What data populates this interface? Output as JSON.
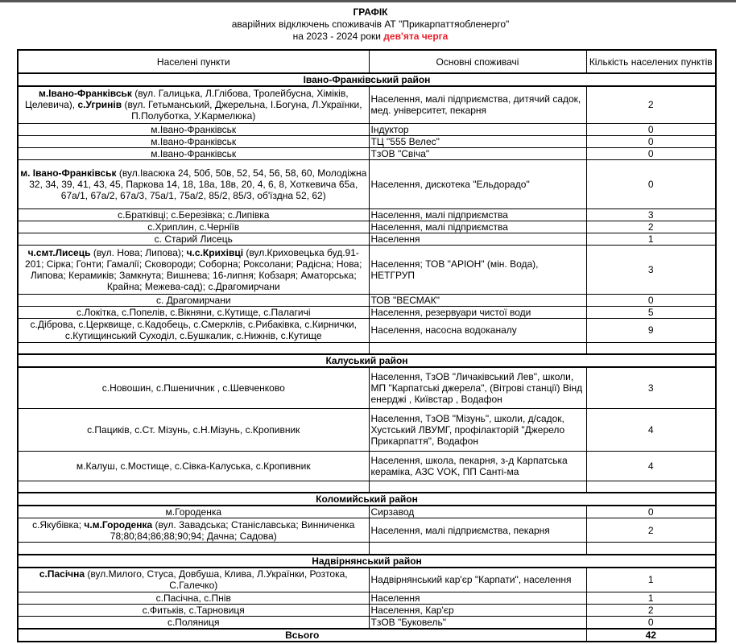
{
  "title": "ГРАФІК",
  "subtitle": "аварійних відключень споживачів АТ \"Прикарпаттяобленерго\"",
  "period_prefix": "на  2023 - 2024 роки ",
  "queue": "дев'ята черга",
  "accent_color": "#e8202a",
  "columns": [
    "Населені пункти",
    "Основні споживачі",
    "Кількість населених пунктів"
  ],
  "rows": [
    {
      "type": "district",
      "label": "Івано-Франківський район"
    },
    {
      "place": [
        {
          "text": "м.Івано-Франківськ",
          "bold": true
        },
        {
          "text": " (вул. Галицька, Л.Глібова, Тролейбусна, Хіміків, Целевича), "
        },
        {
          "text": "с.Угринів",
          "bold": true
        },
        {
          "text": " (вул. Гетьманський, Джерельна, І.Богуна, Л.Українки, П.Полуботка, У.Кармелюка)"
        }
      ],
      "consumers": "Населення, малі підприємства, дитячий садок, мед. університет, пекарня",
      "count": "2"
    },
    {
      "place": [
        {
          "text": "м.Івано-Франківськ"
        }
      ],
      "consumers": "Індуктор",
      "count": "0"
    },
    {
      "place": [
        {
          "text": "м.Івано-Франківськ"
        }
      ],
      "consumers": "ТЦ \"555 Велес\"",
      "count": "0"
    },
    {
      "place": [
        {
          "text": "м.Івано-Франківськ"
        }
      ],
      "consumers": "ТзОВ \"Свіча\"",
      "count": "0"
    },
    {
      "place": [
        {
          "text": "м. Івано-Франківськ",
          "bold": true
        },
        {
          "text": " (вул.Івасюка 24, 50б, 50в, 52, 54, 56, 58, 60, Молодіжна 32, 34, 39, 41, 43, 45, Паркова 14, 18, 18а, 18в, 20, 4, 6, 8, Хоткевича 65а, 67а/1, 67а/2, 67а/3, 75а/1, 75а/2, 85/2, 85/3, об'їздна 52, 62)"
        }
      ],
      "consumers": "Населення, дискотека \"Ельдорадо\"",
      "count": "0"
    },
    {
      "place": [
        {
          "text": "с.Братківці; с.Березівка; с.Липівка"
        }
      ],
      "consumers": "Населення, малі підприємства",
      "count": "3"
    },
    {
      "place": [
        {
          "text": "с.Хриплин, с.Черніїв"
        }
      ],
      "consumers": "Населення, малі підприємства",
      "count": "2"
    },
    {
      "place": [
        {
          "text": "с. Старий Лисець"
        }
      ],
      "consumers": "Населення",
      "count": "1"
    },
    {
      "place": [
        {
          "text": "ч.смт.Лисець",
          "bold": true
        },
        {
          "text": " (вул. Нова; Липова); "
        },
        {
          "text": "ч.с.Крихівці",
          "bold": true
        },
        {
          "text": " (вул.Криховецька буд.91-201; Сірка; Гонти; Гамалії; Сковороди; Соборна; Роксолани; Радісна; Нова; Липова; Керамиків; Замкнута; Вишнева; 16-липня; Кобзаря; Аматорська; Крайна; Межева-сад); с.Драгомирчани"
        }
      ],
      "consumers": "Населення; ТОВ \"АРІОН\" (мін. Вода), НЕТГРУП",
      "count": "3"
    },
    {
      "place": [
        {
          "text": "с. Драгомирчани"
        }
      ],
      "consumers": "ТОВ \"ВЕСМАК\"",
      "count": "0"
    },
    {
      "place": [
        {
          "text": "с.Локітка, с.Попелів, с.Вікняни, с.Кутище, с.Палагичі"
        }
      ],
      "consumers": "Населення, резервуари чистої води",
      "count": "5"
    },
    {
      "place": [
        {
          "text": "с.Діброва, с.Церквище, с.Кадобець, с.Смерклів, с.Рибаківка, с.Кирнички, с.Кутищинський Суходіл, с.Бушкалик, с.Нижнів, с.Кутище"
        }
      ],
      "consumers": "Населення, насосна водоканалу",
      "count": "9"
    },
    {
      "type": "empty"
    },
    {
      "type": "district",
      "label": "Калуський район"
    },
    {
      "place": [
        {
          "text": "с.Новошин, с.Пшеничник , с.Шевченково"
        }
      ],
      "consumers": "Населення, ТзОВ \"Личаківський Лев\", школи, МП \"Карпатські джерела\", (Вітрові станції) Вінд енерджі , Київстар , Водафон",
      "count": "3"
    },
    {
      "place": [
        {
          "text": "с.Пациків, с.Ст. Мізунь, с.Н.Мізунь, с.Кропивник"
        }
      ],
      "consumers": "Населення, ТзОВ \"Мізунь\", школи, д/садок, Хустський ЛВУМГ, профілакторій \"Джерело Прикарпаття\", Водафон",
      "count": "4"
    },
    {
      "place": [
        {
          "text": "м.Калуш, с.Мостище, с.Сівка-Калуська, с.Кропивник"
        }
      ],
      "consumers": "Населення, школа, пекарня, з-д Карпатська кераміка, АЗС VOK, ПП Санті-ма",
      "count": "4"
    },
    {
      "type": "empty"
    },
    {
      "type": "district",
      "label": "Коломийський район"
    },
    {
      "place": [
        {
          "text": "м.Городенка"
        }
      ],
      "consumers": "Сирзавод",
      "count": "0"
    },
    {
      "place": [
        {
          "text": "с.Якубівка; "
        },
        {
          "text": "ч.м.Городенка",
          "bold": true
        },
        {
          "text": " (вул. Завадська; Станіславська; Винниченка 78;80;84;86;88;90;94; Дачна; Садова)"
        }
      ],
      "consumers": "Населення, малі підприємства, пекарня",
      "count": "2"
    },
    {
      "type": "empty"
    },
    {
      "type": "district",
      "label": "Надвірнянський район"
    },
    {
      "place": [
        {
          "text": "с.Пасічна",
          "bold": true
        },
        {
          "text": " (вул.Милого, Стуса, Довбуша, Клива, Л.Українки, Розтока, С.Галечко)"
        }
      ],
      "consumers": "Надвірнянський кар'єр \"Карпати\", населення",
      "count": "1"
    },
    {
      "place": [
        {
          "text": "с.Пасічна, с.Пнів"
        }
      ],
      "consumers": "Населення",
      "count": "1"
    },
    {
      "place": [
        {
          "text": "с.Фитьків,  с.Тарновиця"
        }
      ],
      "consumers": "Населення, Кар'єр",
      "count": "2"
    },
    {
      "place": [
        {
          "text": "с.Поляниця"
        }
      ],
      "consumers": "ТзОВ \"Буковель\"",
      "count": "0"
    }
  ],
  "total": {
    "label": "Всього",
    "value": "42"
  }
}
